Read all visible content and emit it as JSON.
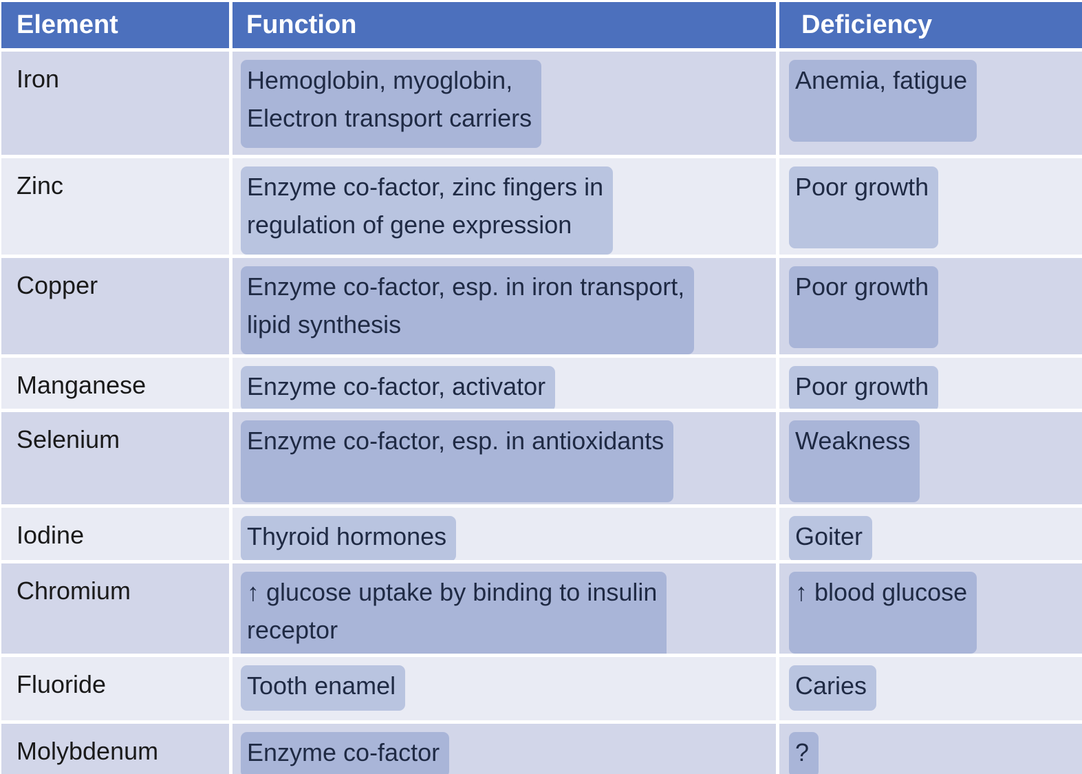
{
  "colors": {
    "header_background": "#4C70BD",
    "header_text": "#FFFFFF",
    "row_band_dark": "#D2D6E9",
    "row_band_light": "#E9EBF4",
    "element_text": "#1A1A1A",
    "body_text": "#1F2A44",
    "highlight_mark": "#4D6AB4",
    "highlight_opacity": "0.30",
    "gridline": "#FFFFFF"
  },
  "table": {
    "columns": [
      {
        "label": "Element"
      },
      {
        "label": "Function"
      },
      {
        "label": "Deficiency"
      }
    ],
    "rows": [
      {
        "element": "Iron",
        "function": "Hemoglobin, myoglobin,\nElectron transport carriers",
        "function_hl": "deep",
        "deficiency": "Anemia, fatigue",
        "deficiency_hl": "tall"
      },
      {
        "element": "Zinc",
        "function": "Enzyme co-factor, zinc fingers in\nregulation of gene expression",
        "function_hl": "deep",
        "deficiency": "Poor growth",
        "deficiency_hl": "tall"
      },
      {
        "element": "Copper",
        "function": "Enzyme co-factor, esp. in iron transport,\nlipid synthesis",
        "function_hl": "deep",
        "deficiency": "Poor growth",
        "deficiency_hl": "tall"
      },
      {
        "element": "Manganese",
        "function": "Enzyme co-factor, activator",
        "function_hl": "line",
        "deficiency": "Poor growth",
        "deficiency_hl": "line"
      },
      {
        "element": "Selenium",
        "function": "Enzyme co-factor, esp. in antioxidants",
        "function_hl": "tall",
        "deficiency": "Weakness",
        "deficiency_hl": "tall"
      },
      {
        "element": "Iodine",
        "function": "Thyroid hormones",
        "function_hl": "line",
        "deficiency": "Goiter",
        "deficiency_hl": "line"
      },
      {
        "element": "Chromium",
        "function": "↑ glucose uptake by binding to insulin\nreceptor",
        "function_hl": "deep",
        "deficiency": "↑ blood glucose",
        "deficiency_hl": "tall"
      },
      {
        "element": "Fluoride",
        "function": "Tooth enamel",
        "function_hl": "line",
        "deficiency": "Caries",
        "deficiency_hl": "line"
      },
      {
        "element": "Molybdenum",
        "function": "Enzyme co-factor",
        "function_hl": "line",
        "deficiency": "?",
        "deficiency_hl": "line"
      }
    ]
  }
}
